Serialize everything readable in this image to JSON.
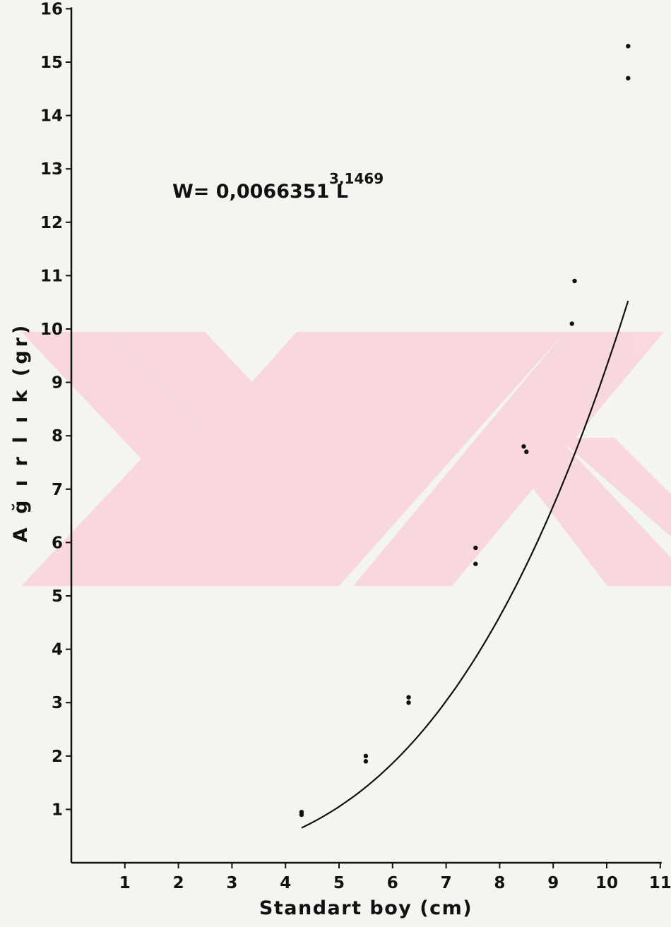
{
  "chart_data": {
    "type": "scatter",
    "xlabel": "Standart boy (cm)",
    "ylabel": "A ğ ı r l ı k (gr)",
    "xlim": [
      0,
      11
    ],
    "ylim": [
      0,
      16
    ],
    "x_ticks": [
      1,
      2,
      3,
      4,
      5,
      6,
      7,
      8,
      9,
      10,
      11
    ],
    "y_ticks": [
      1,
      2,
      3,
      4,
      5,
      6,
      7,
      8,
      9,
      10,
      11,
      12,
      13,
      14,
      15,
      16
    ],
    "grid": false,
    "legend": "none",
    "annotation": {
      "base": "W= 0,0066351 L",
      "exponent": "3,1469"
    },
    "series": [
      {
        "type": "scatter",
        "points": [
          [
            4.3,
            0.95
          ],
          [
            4.3,
            0.9
          ],
          [
            5.5,
            2.0
          ],
          [
            5.5,
            1.9
          ],
          [
            6.3,
            3.1
          ],
          [
            6.3,
            3.0
          ],
          [
            7.55,
            5.9
          ],
          [
            7.55,
            5.6
          ],
          [
            8.45,
            7.8
          ],
          [
            8.5,
            7.7
          ],
          [
            9.35,
            10.1
          ],
          [
            9.4,
            10.9
          ],
          [
            10.4,
            15.3
          ],
          [
            10.4,
            14.7
          ]
        ]
      },
      {
        "type": "line",
        "fit": "power",
        "coefficient": 0.0066351,
        "exponent": 3.1469,
        "x_range": [
          4.3,
          10.4
        ]
      }
    ],
    "colors": {
      "ink": "#111111",
      "paper": "#f4f4f1",
      "watermark": "#f9d6da"
    }
  }
}
